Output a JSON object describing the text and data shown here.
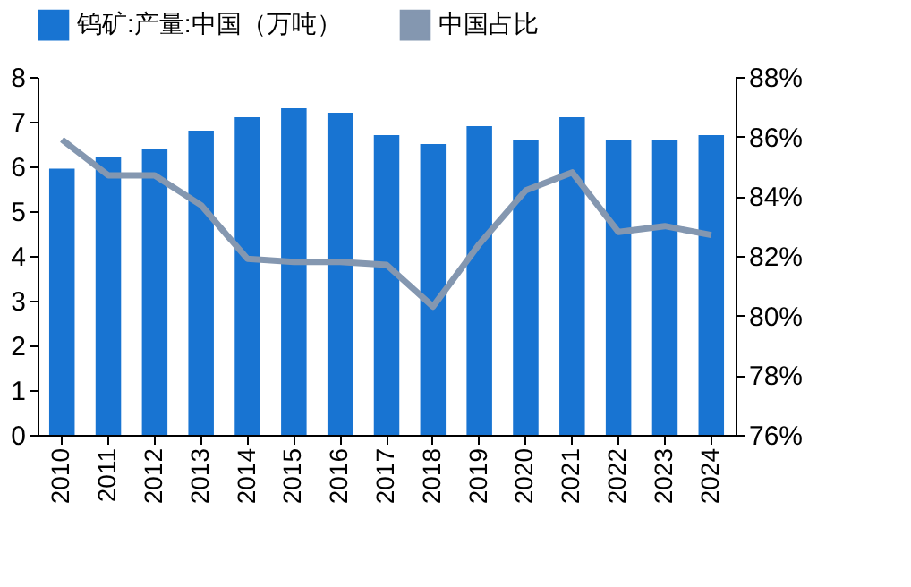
{
  "chart_data": {
    "type": "bar",
    "categories": [
      "2010",
      "2011",
      "2012",
      "2013",
      "2014",
      "2015",
      "2016",
      "2017",
      "2018",
      "2019",
      "2020",
      "2021",
      "2022",
      "2023",
      "2024"
    ],
    "series": [
      {
        "name": "钨矿:产量:中国（万吨）",
        "color": "#1874d2",
        "values": [
          5.95,
          6.2,
          6.4,
          6.8,
          7.1,
          7.3,
          7.2,
          6.7,
          6.5,
          6.9,
          6.6,
          7.1,
          6.6,
          6.6,
          6.7
        ]
      },
      {
        "name": "中国占比",
        "type": "line",
        "axis": "y2",
        "color": "#8497b0",
        "values": [
          85.9,
          84.7,
          84.7,
          83.7,
          81.9,
          81.8,
          81.8,
          81.7,
          80.3,
          82.4,
          84.2,
          84.8,
          82.8,
          83.0,
          82.7
        ]
      }
    ],
    "ylim": [
      0,
      8
    ],
    "yticks": [
      0,
      1,
      2,
      3,
      4,
      5,
      6,
      7,
      8
    ],
    "y2lim": [
      76,
      88
    ],
    "y2ticks": [
      {
        "value": 76,
        "label": "76%"
      },
      {
        "value": 78,
        "label": "78%"
      },
      {
        "value": 80,
        "label": "80%"
      },
      {
        "value": 82,
        "label": "82%"
      },
      {
        "value": 84,
        "label": "84%"
      },
      {
        "value": 86,
        "label": "86%"
      },
      {
        "value": 88,
        "label": "88%"
      }
    ],
    "grid": false,
    "legend": "top",
    "marker": "none",
    "line_style": "solid"
  }
}
